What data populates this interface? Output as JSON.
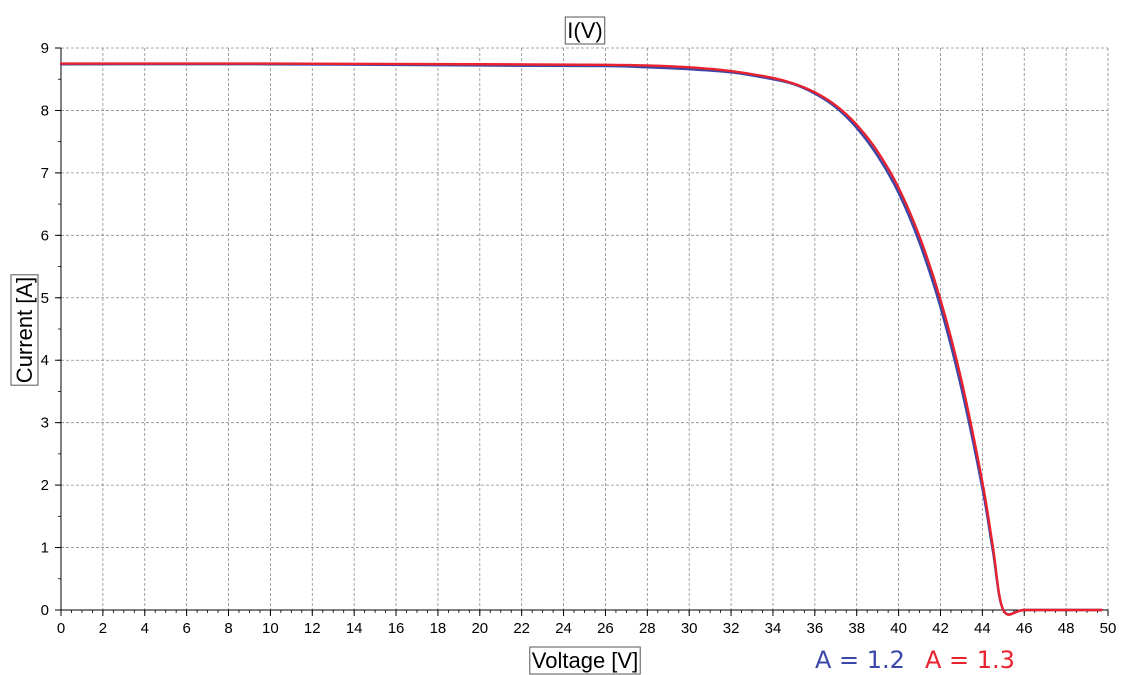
{
  "chart_data": {
    "type": "line",
    "title": "I(V)",
    "xlabel": "Voltage [V]",
    "ylabel": "Current [A]",
    "xlim": [
      0,
      50
    ],
    "ylim": [
      0,
      9
    ],
    "xticks": [
      "0",
      "2",
      "4",
      "6",
      "8",
      "10",
      "12",
      "14",
      "16",
      "18",
      "20",
      "22",
      "24",
      "26",
      "28",
      "30",
      "32",
      "34",
      "36",
      "38",
      "40",
      "42",
      "44",
      "46",
      "48",
      "50"
    ],
    "yticks": [
      "0",
      "1",
      "2",
      "3",
      "4",
      "5",
      "6",
      "7",
      "8",
      "9"
    ],
    "grid": true,
    "legend_position": "bottom-right",
    "series": [
      {
        "name": "A = 1.2",
        "color": "#3a47a8",
        "x": [
          0,
          10,
          20,
          26,
          28,
          30,
          32,
          34,
          35,
          36,
          37,
          38,
          39,
          40,
          41,
          42,
          43,
          44,
          44.5,
          45,
          46,
          48,
          49.7
        ],
        "y": [
          8.74,
          8.74,
          8.72,
          8.71,
          8.69,
          8.66,
          8.61,
          8.5,
          8.42,
          8.27,
          8.05,
          7.72,
          7.27,
          6.68,
          5.88,
          4.85,
          3.55,
          1.95,
          0.95,
          0,
          0,
          0,
          0
        ]
      },
      {
        "name": "A = 1.3",
        "color": "#e8222e",
        "x": [
          0,
          10,
          20,
          26,
          28,
          30,
          32,
          34,
          35,
          36,
          37,
          38,
          39,
          40,
          41,
          42,
          43,
          44,
          44.5,
          45,
          46,
          48,
          49.7
        ],
        "y": [
          8.75,
          8.75,
          8.74,
          8.73,
          8.72,
          8.69,
          8.63,
          8.52,
          8.43,
          8.29,
          8.08,
          7.77,
          7.34,
          6.76,
          5.98,
          4.97,
          3.68,
          2.05,
          1.02,
          0,
          0,
          0,
          0
        ]
      }
    ]
  }
}
